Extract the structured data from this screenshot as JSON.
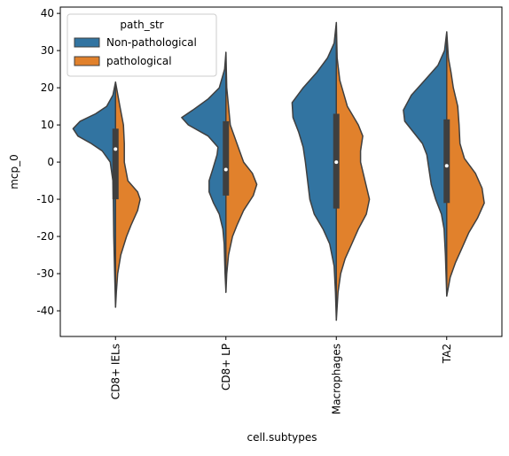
{
  "chart_data": {
    "type": "violin",
    "xlabel": "cell.subtypes",
    "ylabel": "mcp_0",
    "categories": [
      "CD8+ IELs",
      "CD8+ LP",
      "Macrophages",
      "TA2"
    ],
    "ylim": [
      -46.9,
      41.7
    ],
    "yticks": [
      -40,
      -30,
      -20,
      -10,
      0,
      10,
      20,
      30,
      40
    ],
    "legend": {
      "title": "path_str",
      "position": "upper left"
    },
    "split": true,
    "series": [
      {
        "name": "Non-pathological",
        "color": "#3274a1",
        "violins": [
          {
            "y": [
              21.5,
              18,
              15,
              13,
              11,
              9,
              7,
              5,
              3,
              0,
              -5,
              -10,
              -20,
              -30,
              -39
            ],
            "density": [
              0,
              0.06,
              0.2,
              0.45,
              0.8,
              0.96,
              0.85,
              0.55,
              0.3,
              0.12,
              0.06,
              0.05,
              0.04,
              0.02,
              0
            ]
          },
          {
            "y": [
              29.5,
              25,
              20,
              17,
              14,
              12,
              10,
              7,
              4,
              2,
              -2,
              -5,
              -8,
              -11,
              -14,
              -18,
              -22,
              -30,
              -35
            ],
            "density": [
              0,
              0.03,
              0.15,
              0.4,
              0.75,
              1,
              0.85,
              0.4,
              0.18,
              0.2,
              0.3,
              0.38,
              0.38,
              0.28,
              0.15,
              0.07,
              0.04,
              0.02,
              0
            ]
          },
          {
            "y": [
              37.5,
              32,
              28,
              24,
              20,
              16,
              12,
              8,
              4,
              0,
              -5,
              -10,
              -14,
              -18,
              -22,
              -28,
              -35,
              -42.5
            ],
            "density": [
              0,
              0.05,
              0.2,
              0.45,
              0.75,
              1,
              0.98,
              0.85,
              0.75,
              0.7,
              0.65,
              0.6,
              0.5,
              0.3,
              0.15,
              0.05,
              0.02,
              0
            ]
          },
          {
            "y": [
              35,
              30,
              26,
              22,
              18,
              14,
              11,
              8,
              5,
              2,
              -2,
              -6,
              -10,
              -14,
              -18,
              -25,
              -36
            ],
            "density": [
              0,
              0.05,
              0.2,
              0.5,
              0.8,
              0.98,
              0.95,
              0.75,
              0.55,
              0.45,
              0.4,
              0.35,
              0.25,
              0.12,
              0.06,
              0.03,
              0
            ]
          }
        ]
      },
      {
        "name": "pathological",
        "color": "#e1812c",
        "violins": [
          {
            "y": [
              21.5,
              15,
              10,
              5,
              0,
              -5,
              -8,
              -10,
              -13,
              -17,
              -20,
              -25,
              -30,
              -35,
              -39
            ],
            "density": [
              0,
              0.1,
              0.18,
              0.2,
              0.2,
              0.28,
              0.5,
              0.56,
              0.5,
              0.35,
              0.25,
              0.12,
              0.05,
              0.02,
              0
            ]
          },
          {
            "y": [
              29.5,
              20,
              15,
              10,
              5,
              0,
              -3,
              -6,
              -9,
              -13,
              -17,
              -20,
              -25,
              -30,
              -35
            ],
            "density": [
              0,
              0.02,
              0.06,
              0.1,
              0.25,
              0.4,
              0.6,
              0.7,
              0.62,
              0.4,
              0.25,
              0.15,
              0.06,
              0.02,
              0
            ]
          },
          {
            "y": [
              37.5,
              28,
              22,
              15,
              10,
              7,
              3,
              0,
              -5,
              -10,
              -14,
              -18,
              -22,
              -26,
              -30,
              -35,
              -42.5
            ],
            "density": [
              0,
              0.02,
              0.08,
              0.25,
              0.5,
              0.6,
              0.55,
              0.55,
              0.65,
              0.75,
              0.68,
              0.5,
              0.35,
              0.2,
              0.1,
              0.04,
              0
            ]
          },
          {
            "y": [
              35,
              28,
              24,
              20,
              15,
              10,
              5,
              1,
              -3,
              -7,
              -11,
              -15,
              -19,
              -23,
              -27,
              -31,
              -36
            ],
            "density": [
              0,
              0.04,
              0.1,
              0.15,
              0.25,
              0.28,
              0.3,
              0.4,
              0.65,
              0.8,
              0.85,
              0.7,
              0.5,
              0.35,
              0.2,
              0.08,
              0
            ]
          }
        ]
      }
    ],
    "box": {
      "q1": [
        -10,
        -9,
        -12.5,
        -11
      ],
      "median": [
        3.5,
        -2,
        0,
        -1
      ],
      "q3": [
        9,
        11,
        13,
        11.5
      ]
    }
  }
}
